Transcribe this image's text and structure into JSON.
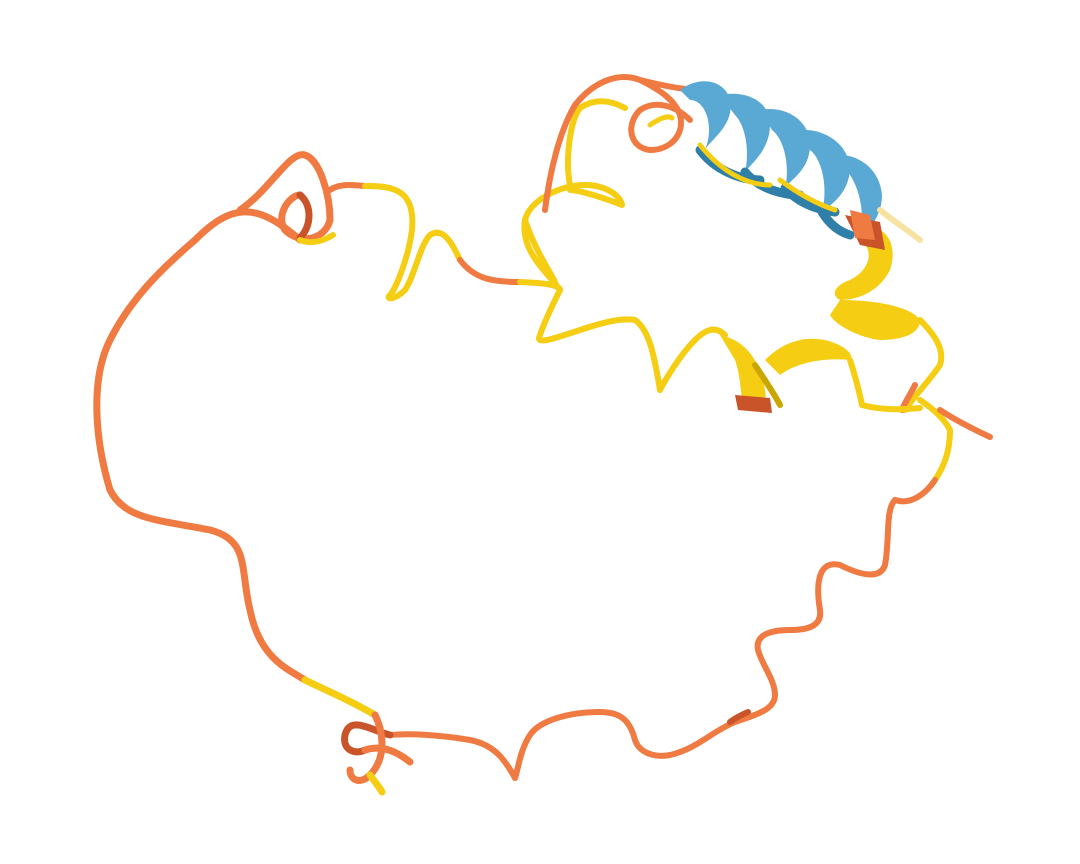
{
  "scene": {
    "background": "#ffffff",
    "subject": "protein-cartoon-structure"
  },
  "palette": {
    "very_low_confidence": "#EF7A42",
    "low_confidence": "#F5CD12",
    "confident": "#5AA9D4",
    "very_high_confidence_fade": "#F7E3A1",
    "shade_orange": "#C9542A",
    "shade_yellow": "#C9A600",
    "shade_blue": "#2F7FA8"
  }
}
